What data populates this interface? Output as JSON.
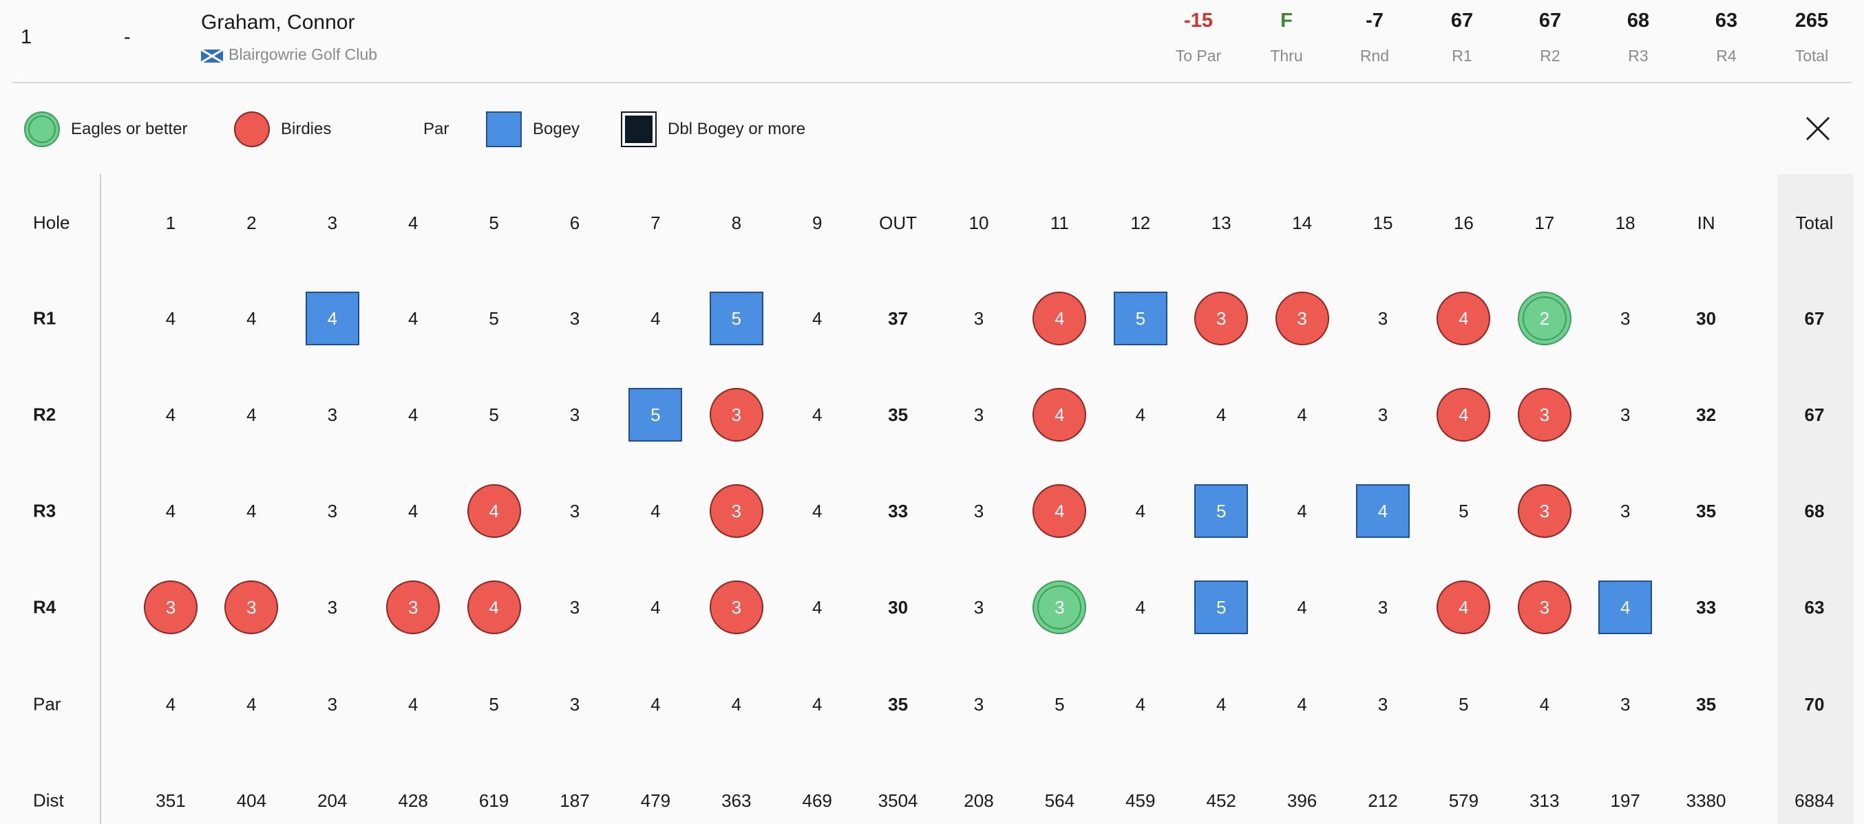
{
  "player": {
    "position": "1",
    "movement": "-",
    "name": "Graham, Connor",
    "club": "Blairgowrie Golf Club",
    "flag": "scotland-flag-icon"
  },
  "stats": [
    {
      "value": "-15",
      "label": "To Par",
      "color": "#d0342c"
    },
    {
      "value": "F",
      "label": "Thru",
      "color": "#3c8a2e"
    },
    {
      "value": "-7",
      "label": "Rnd",
      "color": "#1a1a1a"
    },
    {
      "value": "67",
      "label": "R1",
      "color": "#1a1a1a"
    },
    {
      "value": "67",
      "label": "R2",
      "color": "#1a1a1a"
    },
    {
      "value": "68",
      "label": "R3",
      "color": "#1a1a1a"
    },
    {
      "value": "63",
      "label": "R4",
      "color": "#1a1a1a"
    },
    {
      "value": "265",
      "label": "Total",
      "color": "#1a1a1a"
    }
  ],
  "legend": [
    {
      "type": "eagle",
      "label": "Eagles or better"
    },
    {
      "type": "birdie",
      "label": "Birdies"
    },
    {
      "type": "par",
      "label": "Par"
    },
    {
      "type": "bogey",
      "label": "Bogey"
    },
    {
      "type": "dbl",
      "label": "Dbl Bogey or more"
    }
  ],
  "close_icon": "close-icon",
  "colors": {
    "eagle": "#6fcf8f",
    "birdie": "#ec5a52",
    "bogey": "#4a8fe2",
    "dbl_bogey": "#0e1a25",
    "to_par": "#d0342c",
    "thru": "#3c8a2e"
  },
  "scorecard": {
    "columns": [
      "1",
      "2",
      "3",
      "4",
      "5",
      "6",
      "7",
      "8",
      "9",
      "OUT",
      "10",
      "11",
      "12",
      "13",
      "14",
      "15",
      "16",
      "17",
      "18",
      "IN",
      "Total"
    ],
    "rows": [
      {
        "label": "Hole",
        "bold_label": false,
        "cells": [
          "1",
          "2",
          "3",
          "4",
          "5",
          "6",
          "7",
          "8",
          "9",
          "OUT",
          "10",
          "11",
          "12",
          "13",
          "14",
          "15",
          "16",
          "17",
          "18",
          "IN",
          "Total"
        ],
        "marks": [
          "",
          "",
          "",
          "",
          "",
          "",
          "",
          "",
          "",
          "",
          "",
          "",
          "",
          "",
          "",
          "",
          "",
          "",
          "",
          "",
          ""
        ]
      },
      {
        "label": "R1",
        "bold_label": true,
        "cells": [
          "4",
          "4",
          "4",
          "4",
          "5",
          "3",
          "4",
          "5",
          "4",
          "37",
          "3",
          "4",
          "5",
          "3",
          "3",
          "3",
          "4",
          "2",
          "3",
          "30",
          "67"
        ],
        "marks": [
          "",
          "",
          "bogey",
          "",
          "",
          "",
          "",
          "bogey",
          "",
          "",
          "",
          "birdie",
          "bogey",
          "birdie",
          "birdie",
          "",
          "birdie",
          "eagle",
          "",
          "",
          ""
        ]
      },
      {
        "label": "R2",
        "bold_label": true,
        "cells": [
          "4",
          "4",
          "3",
          "4",
          "5",
          "3",
          "5",
          "3",
          "4",
          "35",
          "3",
          "4",
          "4",
          "4",
          "4",
          "3",
          "4",
          "3",
          "3",
          "32",
          "67"
        ],
        "marks": [
          "",
          "",
          "",
          "",
          "",
          "",
          "bogey",
          "birdie",
          "",
          "",
          "",
          "birdie",
          "",
          "",
          "",
          "",
          "birdie",
          "birdie",
          "",
          "",
          ""
        ]
      },
      {
        "label": "R3",
        "bold_label": true,
        "cells": [
          "4",
          "4",
          "3",
          "4",
          "4",
          "3",
          "4",
          "3",
          "4",
          "33",
          "3",
          "4",
          "4",
          "5",
          "4",
          "4",
          "5",
          "3",
          "3",
          "35",
          "68"
        ],
        "marks": [
          "",
          "",
          "",
          "",
          "birdie",
          "",
          "",
          "birdie",
          "",
          "",
          "",
          "birdie",
          "",
          "bogey",
          "",
          "bogey",
          "",
          "birdie",
          "",
          "",
          ""
        ]
      },
      {
        "label": "R4",
        "bold_label": true,
        "cells": [
          "3",
          "3",
          "3",
          "3",
          "4",
          "3",
          "4",
          "3",
          "4",
          "30",
          "3",
          "3",
          "4",
          "5",
          "4",
          "3",
          "4",
          "3",
          "4",
          "33",
          "63"
        ],
        "marks": [
          "birdie",
          "birdie",
          "",
          "birdie",
          "birdie",
          "",
          "",
          "birdie",
          "",
          "",
          "",
          "eagle",
          "",
          "bogey",
          "",
          "",
          "birdie",
          "birdie",
          "bogey",
          "",
          ""
        ]
      },
      {
        "label": "Par",
        "bold_label": false,
        "cells": [
          "4",
          "4",
          "3",
          "4",
          "5",
          "3",
          "4",
          "4",
          "4",
          "35",
          "3",
          "5",
          "4",
          "4",
          "4",
          "3",
          "5",
          "4",
          "3",
          "35",
          "70"
        ],
        "marks": [
          "",
          "",
          "",
          "",
          "",
          "",
          "",
          "",
          "",
          "",
          "",
          "",
          "",
          "",
          "",
          "",
          "",
          "",
          "",
          "",
          ""
        ]
      },
      {
        "label": "Dist",
        "bold_label": false,
        "cells": [
          "351",
          "404",
          "204",
          "428",
          "619",
          "187",
          "479",
          "363",
          "469",
          "3504",
          "208",
          "564",
          "459",
          "452",
          "396",
          "212",
          "579",
          "313",
          "197",
          "3380",
          "6884"
        ],
        "marks": [
          "",
          "",
          "",
          "",
          "",
          "",
          "",
          "",
          "",
          "",
          "",
          "",
          "",
          "",
          "",
          "",
          "",
          "",
          "",
          "",
          ""
        ]
      }
    ]
  }
}
